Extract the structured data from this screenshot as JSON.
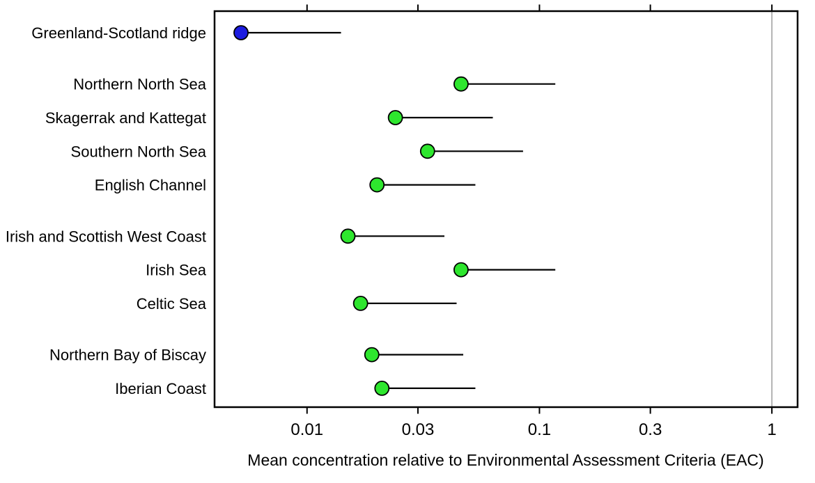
{
  "chart_data": {
    "type": "scatter",
    "subtype": "dot-plot-with-upper-range",
    "title": "",
    "xlabel": "Mean concentration relative to Environmental Assessment Criteria (EAC)",
    "ylabel": "",
    "x_scale": "log",
    "xlim": [
      0.004,
      1.29
    ],
    "x_tick_values": [
      0.01,
      0.03,
      0.1,
      0.3,
      1
    ],
    "x_tick_labels": [
      "0.01",
      "0.03",
      "0.1",
      "0.3",
      "1"
    ],
    "grid": false,
    "legend_position": "none",
    "reference_line": {
      "x": 1,
      "color": "#b3b3b3"
    },
    "rows": [
      {
        "label": "Greenland-Scotland ridge",
        "mean": 0.0052,
        "upper": 0.014,
        "color": "#1c1ce0",
        "group": 0
      },
      {
        "label": "Northern North Sea",
        "mean": 0.046,
        "upper": 0.117,
        "color": "#2ee62e",
        "group": 1
      },
      {
        "label": "Skagerrak and Kattegat",
        "mean": 0.024,
        "upper": 0.063,
        "color": "#2ee62e",
        "group": 1
      },
      {
        "label": "Southern North Sea",
        "mean": 0.033,
        "upper": 0.085,
        "color": "#2ee62e",
        "group": 1
      },
      {
        "label": "English Channel",
        "mean": 0.02,
        "upper": 0.053,
        "color": "#2ee62e",
        "group": 1
      },
      {
        "label": "Irish and Scottish West Coast",
        "mean": 0.015,
        "upper": 0.039,
        "color": "#2ee62e",
        "group": 2
      },
      {
        "label": "Irish Sea",
        "mean": 0.046,
        "upper": 0.117,
        "color": "#2ee62e",
        "group": 2
      },
      {
        "label": "Celtic Sea",
        "mean": 0.017,
        "upper": 0.044,
        "color": "#2ee62e",
        "group": 2
      },
      {
        "label": "Northern Bay of Biscay",
        "mean": 0.019,
        "upper": 0.047,
        "color": "#2ee62e",
        "group": 3
      },
      {
        "label": "Iberian Coast",
        "mean": 0.021,
        "upper": 0.053,
        "color": "#2ee62e",
        "group": 3
      }
    ],
    "colors": {
      "dot_green": "#2ee62e",
      "dot_blue": "#1c1ce0",
      "dot_outline": "#000000",
      "range_line": "#000000",
      "reference_line": "#b3b3b3",
      "axis": "#000000",
      "background": "#ffffff"
    }
  }
}
